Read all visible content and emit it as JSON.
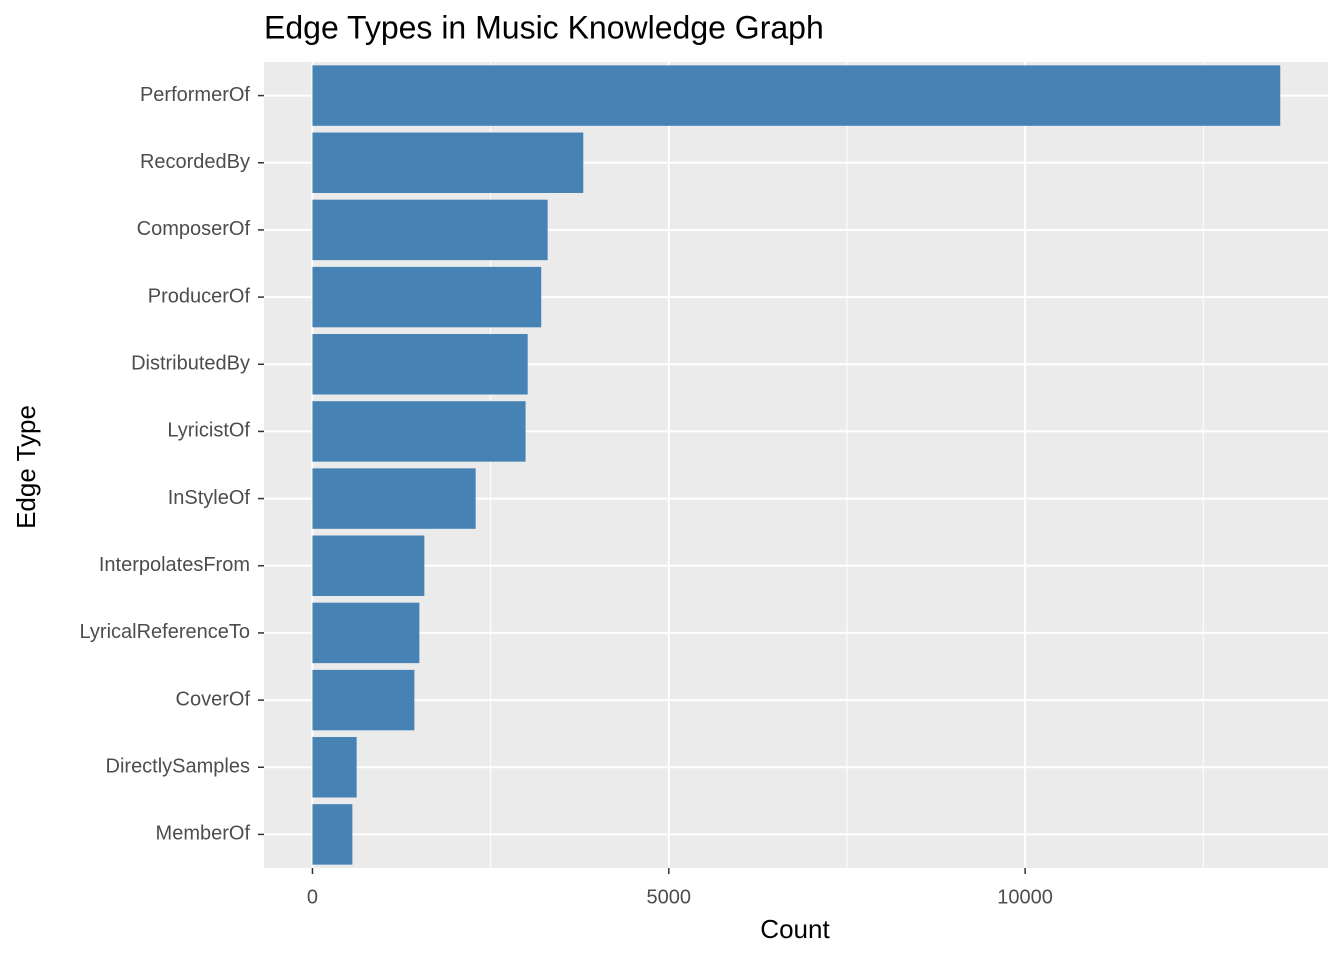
{
  "chart_data": {
    "type": "bar",
    "orientation": "horizontal",
    "title": "Edge Types in Music Knowledge Graph",
    "x_label": "Count",
    "y_label": "Edge Type",
    "categories": [
      "PerformerOf",
      "RecordedBy",
      "ComposerOf",
      "ProducerOf",
      "DistributedBy",
      "LyricistOf",
      "InStyleOf",
      "InterpolatesFrom",
      "LyricalReferenceTo",
      "CoverOf",
      "DirectlySamples",
      "MemberOf"
    ],
    "values": [
      13580,
      3800,
      3300,
      3210,
      3020,
      2990,
      2290,
      1570,
      1500,
      1430,
      620,
      560
    ],
    "color": "#4682b4",
    "xlim": [
      -680,
      14250
    ],
    "xticks": [
      0,
      5000,
      10000
    ],
    "grid": true
  }
}
